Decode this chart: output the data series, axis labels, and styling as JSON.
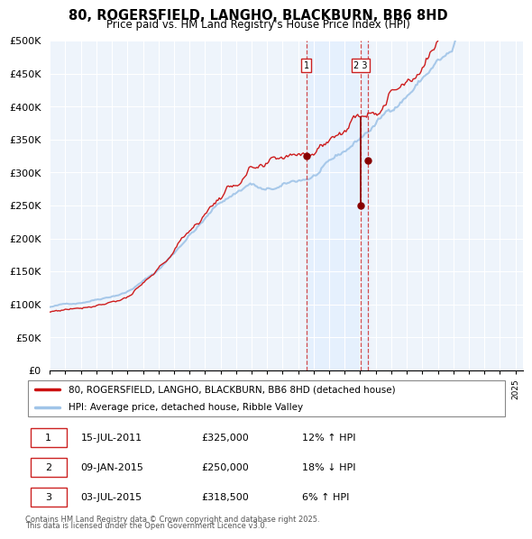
{
  "title": "80, ROGERSFIELD, LANGHO, BLACKBURN, BB6 8HD",
  "subtitle": "Price paid vs. HM Land Registry's House Price Index (HPI)",
  "legend_line1": "80, ROGERSFIELD, LANGHO, BLACKBURN, BB6 8HD (detached house)",
  "legend_line2": "HPI: Average price, detached house, Ribble Valley",
  "footer1": "Contains HM Land Registry data © Crown copyright and database right 2025.",
  "footer2": "This data is licensed under the Open Government Licence v3.0.",
  "transactions": [
    {
      "num": 1,
      "date": "15-JUL-2011",
      "price": "£325,000",
      "pct": "12% ↑ HPI",
      "x_year": 2011.542,
      "y_val": 325000
    },
    {
      "num": 2,
      "date": "09-JAN-2015",
      "price": "£250,000",
      "pct": "18% ↓ HPI",
      "x_year": 2015.025,
      "y_val": 250000
    },
    {
      "num": 3,
      "date": "03-JUL-2015",
      "price": "£318,500",
      "pct": "6% ↑ HPI",
      "x_year": 2015.5,
      "y_val": 318500
    }
  ],
  "hpi_color": "#a0c4e8",
  "price_color": "#cc1111",
  "shade_color": "#ddeeff",
  "bg_color": "#ffffff",
  "grid_color": "#cccccc",
  "ylim": [
    0,
    500000
  ],
  "xlim_start": 1995.0,
  "xlim_end": 2025.5
}
